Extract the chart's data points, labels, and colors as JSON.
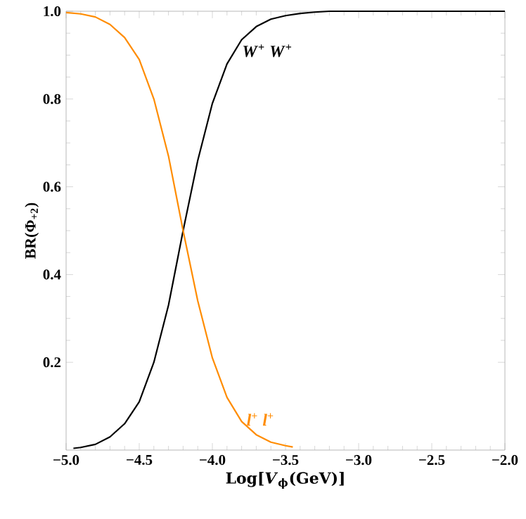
{
  "chart_data": {
    "type": "line",
    "xlabel": "Log[*V*$_{ϕ}$(GeV)]",
    "ylabel": "BR(Φ$_{+2}$)",
    "xlim": [
      -5,
      -2
    ],
    "ylim": [
      0,
      1
    ],
    "xticks": [
      {
        "value": -5,
        "label": "−5.0"
      },
      {
        "value": -4.5,
        "label": "−4.5"
      },
      {
        "value": -4,
        "label": "−4.0"
      },
      {
        "value": -3.5,
        "label": "−3.5"
      },
      {
        "value": -3,
        "label": "−3.0"
      },
      {
        "value": -2.5,
        "label": "−2.5"
      },
      {
        "value": -2,
        "label": "−2.0"
      }
    ],
    "yticks": [
      0.2,
      0.4,
      0.6,
      0.8,
      {
        "value": 1,
        "label": "1.0"
      }
    ],
    "grid": false,
    "legend": false,
    "marker": "none",
    "line_style": "solid",
    "series": [
      {
        "name": "*W*$^{+}$ *W*$^{+}$",
        "color": "#000000",
        "x": [
          -4.95,
          -4.9,
          -4.8,
          -4.7,
          -4.6,
          -4.5,
          -4.4,
          -4.3,
          -4.2,
          -4.1,
          -4.0,
          -3.9,
          -3.8,
          -3.7,
          -3.6,
          -3.5,
          -3.4,
          -3.3,
          -3.2,
          -3.0,
          -2.5,
          -2.0
        ],
        "values": [
          0.004,
          0.006,
          0.013,
          0.03,
          0.06,
          0.11,
          0.2,
          0.33,
          0.5,
          0.66,
          0.79,
          0.88,
          0.935,
          0.965,
          0.982,
          0.99,
          0.995,
          0.998,
          1.0,
          1.0,
          1.0,
          1.0
        ]
      },
      {
        "name": "*l*$^{+}$ *l*$^{+}$",
        "color": "#ff8c00",
        "x": [
          -5.0,
          -4.9,
          -4.8,
          -4.7,
          -4.6,
          -4.5,
          -4.4,
          -4.3,
          -4.2,
          -4.1,
          -4.0,
          -3.9,
          -3.8,
          -3.7,
          -3.6,
          -3.5,
          -3.45
        ],
        "values": [
          0.997,
          0.994,
          0.987,
          0.97,
          0.94,
          0.89,
          0.8,
          0.67,
          0.5,
          0.34,
          0.21,
          0.12,
          0.065,
          0.035,
          0.018,
          0.01,
          0.007
        ]
      }
    ]
  }
}
